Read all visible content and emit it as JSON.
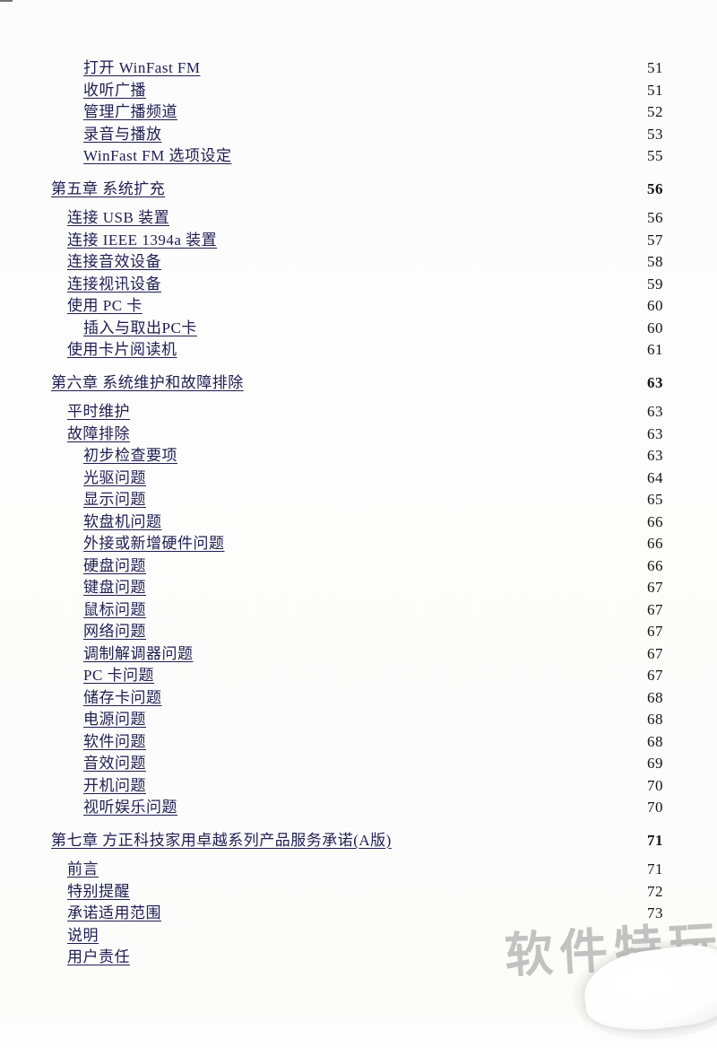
{
  "colors": {
    "link": "#1e1e52",
    "page_number": "#141414",
    "watermark": "#b9b9b9",
    "background": "#fdfdfd"
  },
  "toc": {
    "entries": [
      {
        "text": "打开 WinFast FM",
        "page": "51",
        "level": 3,
        "chapter": false
      },
      {
        "text": "收听广播",
        "page": "51",
        "level": 3,
        "chapter": false
      },
      {
        "text": "管理广播频道",
        "page": "52",
        "level": 3,
        "chapter": false
      },
      {
        "text": "录音与播放",
        "page": "53",
        "level": 3,
        "chapter": false
      },
      {
        "text": "WinFast FM 选项设定",
        "page": "55",
        "level": 3,
        "chapter": false
      },
      {
        "text": "第五章 系统扩充",
        "page": "56",
        "level": 1,
        "chapter": true
      },
      {
        "text": "连接 USB 装置",
        "page": "56",
        "level": 2,
        "chapter": false
      },
      {
        "text": "连接 IEEE 1394a 装置",
        "page": "57",
        "level": 2,
        "chapter": false
      },
      {
        "text": "连接音效设备",
        "page": "58",
        "level": 2,
        "chapter": false
      },
      {
        "text": "连接视讯设备",
        "page": "59",
        "level": 2,
        "chapter": false
      },
      {
        "text": "使用 PC 卡",
        "page": "60",
        "level": 2,
        "chapter": false
      },
      {
        "text": "插入与取出PC卡",
        "page": "60",
        "level": 3,
        "chapter": false
      },
      {
        "text": "使用卡片阅读机",
        "page": "61",
        "level": 2,
        "chapter": false
      },
      {
        "text": "第六章 系统维护和故障排除",
        "page": "63",
        "level": 1,
        "chapter": true
      },
      {
        "text": "平时维护",
        "page": "63",
        "level": 2,
        "chapter": false
      },
      {
        "text": "故障排除",
        "page": "63",
        "level": 2,
        "chapter": false
      },
      {
        "text": "初步检查要项",
        "page": "63",
        "level": 3,
        "chapter": false
      },
      {
        "text": "光驱问题",
        "page": "64",
        "level": 3,
        "chapter": false
      },
      {
        "text": "显示问题",
        "page": "65",
        "level": 3,
        "chapter": false
      },
      {
        "text": "软盘机问题",
        "page": "66",
        "level": 3,
        "chapter": false
      },
      {
        "text": "外接或新增硬件问题",
        "page": "66",
        "level": 3,
        "chapter": false
      },
      {
        "text": "硬盘问题",
        "page": "66",
        "level": 3,
        "chapter": false
      },
      {
        "text": "键盘问题",
        "page": "67",
        "level": 3,
        "chapter": false
      },
      {
        "text": "鼠标问题",
        "page": "67",
        "level": 3,
        "chapter": false
      },
      {
        "text": "网络问题",
        "page": "67",
        "level": 3,
        "chapter": false
      },
      {
        "text": "调制解调器问题",
        "page": "67",
        "level": 3,
        "chapter": false
      },
      {
        "text": "PC 卡问题",
        "page": "67",
        "level": 3,
        "chapter": false
      },
      {
        "text": "储存卡问题",
        "page": "68",
        "level": 3,
        "chapter": false
      },
      {
        "text": "电源问题",
        "page": "68",
        "level": 3,
        "chapter": false
      },
      {
        "text": "软件问题",
        "page": "68",
        "level": 3,
        "chapter": false
      },
      {
        "text": "音效问题",
        "page": "69",
        "level": 3,
        "chapter": false
      },
      {
        "text": "开机问题",
        "page": "70",
        "level": 3,
        "chapter": false
      },
      {
        "text": "视听娱乐问题",
        "page": "70",
        "level": 3,
        "chapter": false
      },
      {
        "text": "第七章 方正科技家用卓越系列产品服务承诺(A版)",
        "page": "71",
        "level": 1,
        "chapter": true
      },
      {
        "text": "前言",
        "page": "71",
        "level": 2,
        "chapter": false
      },
      {
        "text": "特别提醒",
        "page": "72",
        "level": 2,
        "chapter": false
      },
      {
        "text": "承诺适用范围",
        "page": "73",
        "level": 2,
        "chapter": false
      },
      {
        "text": "说明",
        "page": "",
        "level": 2,
        "chapter": false
      },
      {
        "text": "用户责任",
        "page": "",
        "level": 2,
        "chapter": false
      }
    ]
  },
  "watermark": {
    "text": "软件特玩"
  }
}
